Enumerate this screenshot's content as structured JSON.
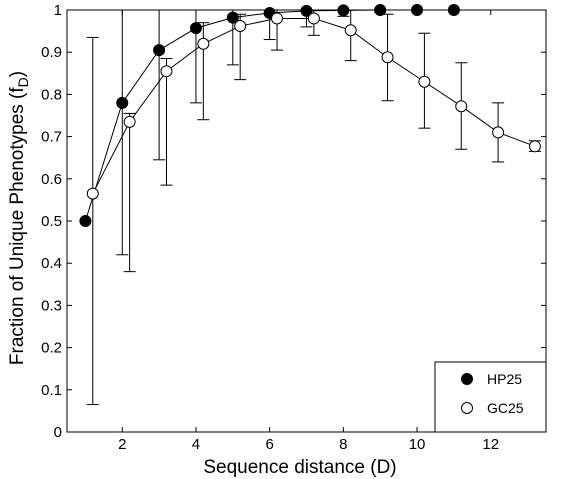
{
  "chart_data": {
    "type": "scatter",
    "xlabel": "Sequence distance (D)",
    "ylabel_main": "Fraction of Unique Phenotypes (f",
    "ylabel_sub": "D",
    "ylabel_close": ")",
    "xlim": [
      0.5,
      13.5
    ],
    "ylim": [
      0,
      1
    ],
    "xticks": [
      2,
      4,
      6,
      8,
      10,
      12
    ],
    "yticks": [
      0,
      0.1,
      0.2,
      0.3,
      0.4,
      0.5,
      0.6,
      0.7,
      0.8,
      0.9,
      1
    ],
    "ytick_labels": [
      "0",
      "0.1",
      "0.2",
      "0.3",
      "0.4",
      "0.5",
      "0.6",
      "0.7",
      "0.8",
      "0.9",
      "1"
    ],
    "grid": false,
    "legend_position": "bottom-right",
    "series": [
      {
        "name": "HP25",
        "marker": "filled-circle",
        "connected": true,
        "x": [
          1,
          2,
          3,
          4,
          5,
          6,
          7,
          8,
          9,
          10,
          11
        ],
        "y": [
          0.5,
          0.78,
          0.905,
          0.957,
          0.982,
          0.993,
          0.998,
          0.999,
          1.0,
          1.0,
          1.0
        ],
        "lower": [
          0.5,
          0.42,
          0.645,
          0.78,
          0.87,
          0.93,
          0.96,
          0.985,
          0.995,
          1.0,
          1.0
        ],
        "upper": [
          0.5,
          1.0,
          1.0,
          1.0,
          1.0,
          1.0,
          1.0,
          1.0,
          1.0,
          1.0,
          1.0
        ]
      },
      {
        "name": "GC25",
        "marker": "open-circle",
        "connected": true,
        "x": [
          1.2,
          2.2,
          3.2,
          4.2,
          5.2,
          6.2,
          7.2,
          8.2,
          9.2,
          10.2,
          11.2,
          12.2,
          13.2
        ],
        "y": [
          0.565,
          0.735,
          0.855,
          0.92,
          0.962,
          0.98,
          0.98,
          0.952,
          0.888,
          0.83,
          0.772,
          0.71,
          0.677
        ],
        "lower": [
          0.065,
          0.38,
          0.585,
          0.74,
          0.835,
          0.905,
          0.94,
          0.88,
          0.785,
          0.72,
          0.67,
          0.64,
          0.665
        ],
        "upper": [
          0.935,
          0.755,
          0.885,
          0.97,
          0.99,
          1.0,
          1.0,
          1.0,
          0.99,
          0.945,
          0.875,
          0.78,
          0.69
        ]
      }
    ]
  }
}
